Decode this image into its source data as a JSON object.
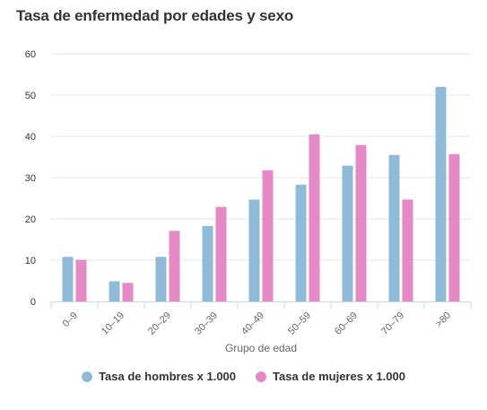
{
  "chart_data": {
    "type": "bar",
    "title": "Tasa de enfermedad por edades y sexo",
    "xlabel": "Grupo de edad",
    "ylabel": "",
    "ylim": [
      0,
      60
    ],
    "yticks": [
      "0",
      "10",
      "20",
      "30",
      "40",
      "50",
      "60"
    ],
    "grid": true,
    "legend_position": "bottom",
    "categories": [
      "0–9",
      "10–19",
      "20–29",
      "30–39",
      "40–49",
      "50–59",
      "60–69",
      "70–79",
      ">80"
    ],
    "series": [
      {
        "name": "Tasa de hombres x 1.000",
        "color": "#8fbbd9",
        "values": [
          10.8,
          4.9,
          10.8,
          18.3,
          24.7,
          28.3,
          32.9,
          35.5,
          52.0
        ]
      },
      {
        "name": "Tasa de mujeres x 1.000",
        "color": "#e58ac6",
        "values": [
          10.1,
          4.5,
          17.1,
          22.9,
          31.8,
          40.5,
          37.9,
          24.7,
          35.7
        ]
      }
    ]
  }
}
